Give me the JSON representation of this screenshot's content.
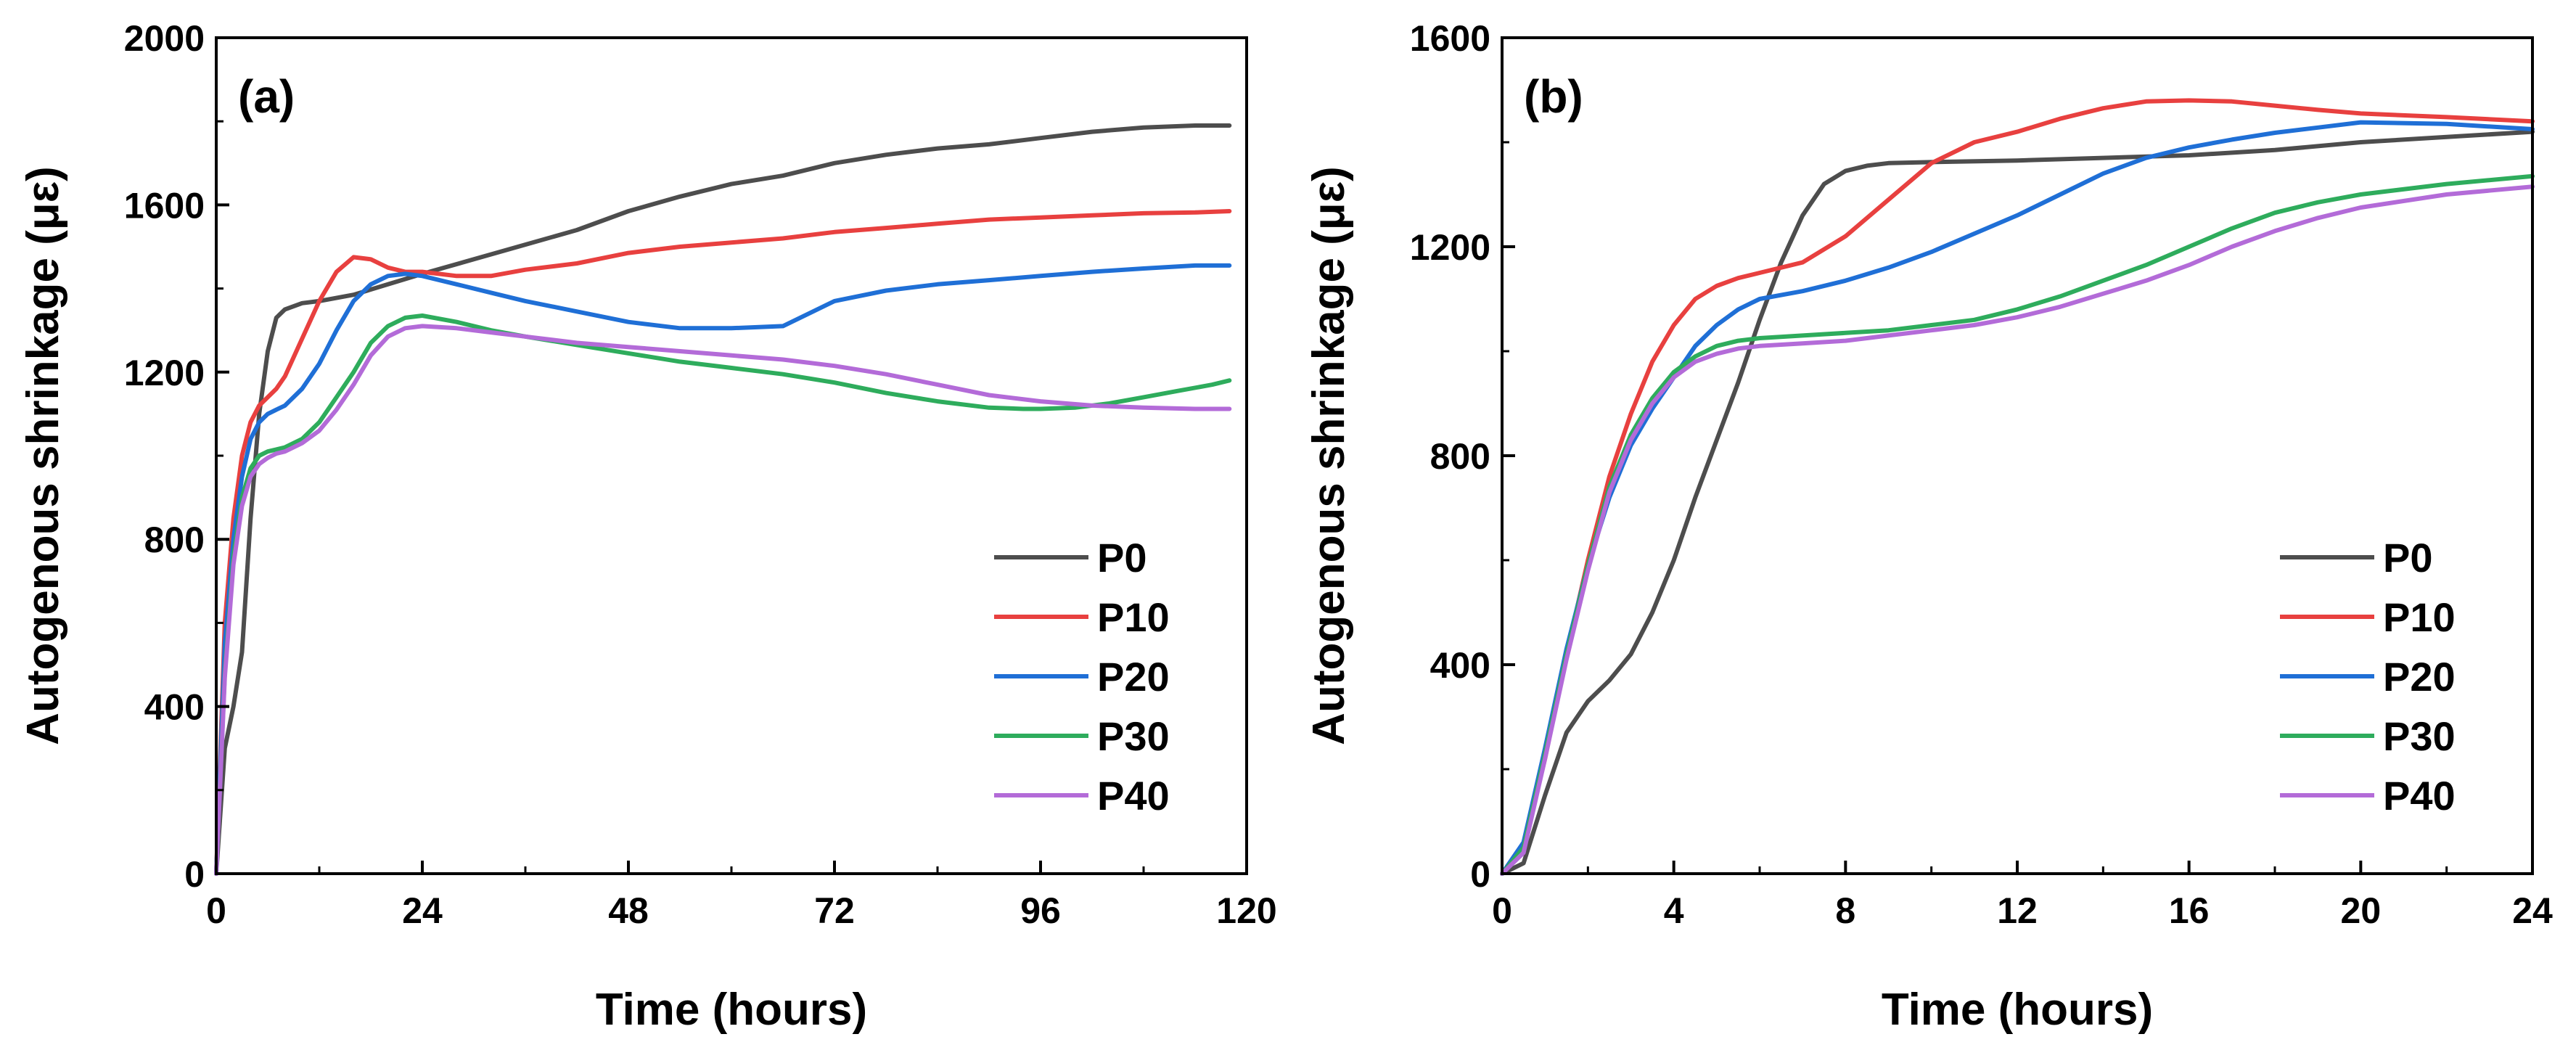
{
  "chart_data": [
    {
      "type": "line",
      "panel_label": "(a)",
      "xlabel": "Time (hours)",
      "ylabel": "Autogenous shrinkage (με)",
      "xlim": [
        0,
        120
      ],
      "ylim": [
        0,
        2000
      ],
      "xticks": [
        0,
        24,
        48,
        72,
        96,
        120
      ],
      "yticks": [
        0,
        400,
        800,
        1200,
        1600,
        2000
      ],
      "x_minor_step": 12,
      "y_minor_step": 200,
      "legend_position": "bottom-right",
      "series": [
        {
          "name": "P0",
          "color": "#4d4d4d",
          "x": [
            0,
            1,
            2,
            3,
            4,
            5,
            6,
            7,
            8,
            10,
            12,
            16,
            20,
            24,
            30,
            36,
            42,
            48,
            54,
            60,
            66,
            72,
            78,
            84,
            90,
            96,
            102,
            108,
            114,
            118
          ],
          "y": [
            0,
            300,
            400,
            530,
            850,
            1100,
            1250,
            1330,
            1350,
            1365,
            1370,
            1385,
            1410,
            1435,
            1470,
            1505,
            1540,
            1585,
            1620,
            1650,
            1670,
            1700,
            1720,
            1735,
            1745,
            1760,
            1775,
            1785,
            1790,
            1790
          ]
        },
        {
          "name": "P10",
          "color": "#e8403f",
          "x": [
            0,
            1,
            2,
            3,
            4,
            5,
            6,
            7,
            8,
            10,
            12,
            14,
            16,
            18,
            20,
            22,
            24,
            28,
            32,
            36,
            42,
            48,
            54,
            60,
            66,
            72,
            78,
            84,
            90,
            96,
            102,
            108,
            114,
            118
          ],
          "y": [
            0,
            600,
            850,
            1000,
            1080,
            1120,
            1140,
            1160,
            1190,
            1280,
            1370,
            1440,
            1475,
            1470,
            1450,
            1440,
            1440,
            1430,
            1430,
            1445,
            1460,
            1485,
            1500,
            1510,
            1520,
            1535,
            1545,
            1555,
            1565,
            1570,
            1575,
            1580,
            1582,
            1585
          ]
        },
        {
          "name": "P20",
          "color": "#1f6fd6",
          "x": [
            0,
            1,
            2,
            3,
            4,
            5,
            6,
            7,
            8,
            10,
            12,
            14,
            16,
            18,
            20,
            22,
            24,
            28,
            32,
            36,
            42,
            48,
            54,
            60,
            66,
            70,
            72,
            78,
            84,
            90,
            96,
            102,
            108,
            114,
            118
          ],
          "y": [
            0,
            550,
            800,
            950,
            1040,
            1080,
            1100,
            1110,
            1120,
            1160,
            1220,
            1300,
            1370,
            1410,
            1430,
            1435,
            1430,
            1410,
            1390,
            1370,
            1345,
            1320,
            1305,
            1305,
            1310,
            1350,
            1370,
            1395,
            1410,
            1420,
            1430,
            1440,
            1448,
            1455,
            1455
          ]
        },
        {
          "name": "P30",
          "color": "#2eac5c",
          "x": [
            0,
            1,
            2,
            3,
            4,
            5,
            6,
            7,
            8,
            10,
            12,
            14,
            16,
            18,
            20,
            22,
            24,
            28,
            32,
            36,
            42,
            48,
            54,
            60,
            66,
            72,
            78,
            84,
            90,
            94,
            96,
            100,
            104,
            108,
            112,
            116,
            118
          ],
          "y": [
            0,
            480,
            760,
            900,
            970,
            1000,
            1010,
            1015,
            1020,
            1040,
            1080,
            1140,
            1200,
            1270,
            1310,
            1330,
            1335,
            1320,
            1300,
            1285,
            1265,
            1245,
            1225,
            1210,
            1195,
            1175,
            1150,
            1130,
            1115,
            1112,
            1112,
            1115,
            1125,
            1140,
            1155,
            1170,
            1180
          ]
        },
        {
          "name": "P40",
          "color": "#b36bd8",
          "x": [
            0,
            1,
            2,
            3,
            4,
            5,
            6,
            7,
            8,
            10,
            12,
            14,
            16,
            18,
            20,
            22,
            24,
            28,
            32,
            36,
            42,
            48,
            54,
            60,
            66,
            72,
            78,
            84,
            90,
            96,
            102,
            108,
            114,
            118
          ],
          "y": [
            0,
            470,
            740,
            880,
            950,
            980,
            995,
            1005,
            1010,
            1030,
            1060,
            1110,
            1170,
            1240,
            1285,
            1305,
            1310,
            1305,
            1295,
            1285,
            1270,
            1260,
            1250,
            1240,
            1230,
            1215,
            1195,
            1170,
            1145,
            1130,
            1120,
            1115,
            1112,
            1112
          ]
        }
      ]
    },
    {
      "type": "line",
      "panel_label": "(b)",
      "xlabel": "Time (hours)",
      "ylabel": "Autogenous shrinkage (με)",
      "xlim": [
        0,
        24
      ],
      "ylim": [
        0,
        1600
      ],
      "xticks": [
        0,
        4,
        8,
        12,
        16,
        20,
        24
      ],
      "yticks": [
        0,
        400,
        800,
        1200,
        1600
      ],
      "x_minor_step": 2,
      "y_minor_step": 200,
      "legend_position": "bottom-right",
      "series": [
        {
          "name": "P0",
          "color": "#4d4d4d",
          "x": [
            0,
            0.5,
            1,
            1.5,
            2,
            2.5,
            3,
            3.5,
            4,
            4.5,
            5,
            5.5,
            6,
            6.5,
            7,
            7.5,
            8,
            8.5,
            9,
            10,
            12,
            14,
            16,
            18,
            20,
            22,
            24
          ],
          "y": [
            0,
            20,
            150,
            270,
            330,
            370,
            420,
            500,
            600,
            720,
            830,
            940,
            1060,
            1170,
            1260,
            1320,
            1345,
            1355,
            1360,
            1362,
            1365,
            1370,
            1375,
            1385,
            1400,
            1410,
            1420
          ]
        },
        {
          "name": "P10",
          "color": "#e8403f",
          "x": [
            0,
            0.5,
            1,
            1.5,
            2,
            2.5,
            3,
            3.5,
            4,
            4.5,
            5,
            5.5,
            6,
            7,
            8,
            9,
            10,
            11,
            12,
            13,
            14,
            15,
            16,
            17,
            18,
            19,
            20,
            22,
            24
          ],
          "y": [
            0,
            50,
            220,
            420,
            600,
            760,
            880,
            980,
            1050,
            1100,
            1125,
            1140,
            1150,
            1170,
            1220,
            1290,
            1360,
            1400,
            1420,
            1445,
            1465,
            1478,
            1480,
            1478,
            1470,
            1462,
            1455,
            1448,
            1440
          ]
        },
        {
          "name": "P20",
          "color": "#1f6fd6",
          "x": [
            0,
            0.5,
            1,
            1.5,
            2,
            2.5,
            3,
            3.5,
            4,
            4.5,
            5,
            5.5,
            6,
            7,
            8,
            9,
            10,
            11,
            12,
            13,
            14,
            15,
            16,
            17,
            18,
            19,
            20,
            22,
            24
          ],
          "y": [
            0,
            60,
            240,
            430,
            590,
            720,
            820,
            890,
            950,
            1010,
            1050,
            1080,
            1100,
            1115,
            1135,
            1160,
            1190,
            1225,
            1260,
            1300,
            1340,
            1370,
            1390,
            1405,
            1418,
            1428,
            1438,
            1435,
            1425
          ]
        },
        {
          "name": "P30",
          "color": "#2eac5c",
          "x": [
            0,
            0.5,
            1,
            1.5,
            2,
            2.5,
            3,
            3.5,
            4,
            4.5,
            5,
            5.5,
            6,
            7,
            8,
            9,
            10,
            11,
            12,
            13,
            14,
            15,
            16,
            17,
            18,
            19,
            20,
            22,
            24
          ],
          "y": [
            0,
            50,
            230,
            420,
            590,
            740,
            840,
            910,
            960,
            990,
            1010,
            1020,
            1025,
            1030,
            1035,
            1040,
            1050,
            1060,
            1080,
            1105,
            1135,
            1165,
            1200,
            1235,
            1265,
            1285,
            1300,
            1320,
            1335
          ]
        },
        {
          "name": "P40",
          "color": "#b36bd8",
          "x": [
            0,
            0.5,
            1,
            1.5,
            2,
            2.5,
            3,
            3.5,
            4,
            4.5,
            5,
            5.5,
            6,
            7,
            8,
            9,
            10,
            11,
            12,
            13,
            14,
            15,
            16,
            17,
            18,
            19,
            20,
            22,
            24
          ],
          "y": [
            0,
            40,
            220,
            410,
            580,
            730,
            830,
            900,
            950,
            980,
            995,
            1005,
            1010,
            1015,
            1020,
            1030,
            1040,
            1050,
            1065,
            1085,
            1110,
            1135,
            1165,
            1200,
            1230,
            1255,
            1275,
            1300,
            1315
          ]
        }
      ]
    }
  ]
}
